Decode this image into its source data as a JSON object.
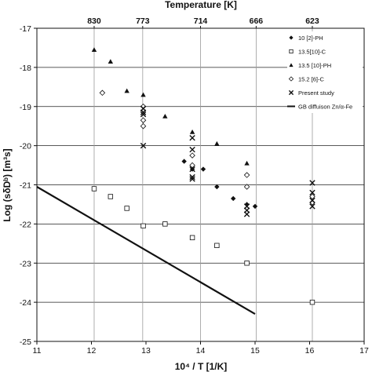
{
  "chart_data": {
    "type": "scatter",
    "title": "",
    "xlabel": "10⁴ / T [1/K]",
    "ylabel": "Log (sδDᵇ)  [m³s]",
    "x2label": "Temperature [K]",
    "xlim": [
      11,
      17
    ],
    "ylim": [
      -25,
      -17
    ],
    "xticks": [
      "11",
      "12",
      "13",
      "14",
      "15",
      "16",
      "17"
    ],
    "yticks": [
      "-17",
      "-18",
      "-19",
      "-20",
      "-21",
      "-22",
      "-23",
      "-24",
      "-25"
    ],
    "top_ticks": [
      {
        "x": 12.05,
        "label": "830"
      },
      {
        "x": 12.94,
        "label": "773"
      },
      {
        "x": 14.0,
        "label": "714"
      },
      {
        "x": 15.02,
        "label": "666"
      },
      {
        "x": 16.05,
        "label": "623"
      }
    ],
    "grid": {
      "horizontal": [
        -18,
        -19,
        -20,
        -21,
        -22,
        -23,
        -24
      ],
      "vertical_at_top_ticks": true
    },
    "legend_position": "top-right",
    "series": [
      {
        "name": "10 [2]-PH",
        "marker": "filled-diamond",
        "points": [
          [
            13.7,
            -20.4
          ],
          [
            13.85,
            -20.6
          ],
          [
            14.05,
            -20.6
          ],
          [
            14.3,
            -21.05
          ],
          [
            14.6,
            -21.35
          ],
          [
            14.85,
            -21.5
          ],
          [
            15.0,
            -21.55
          ]
        ]
      },
      {
        "name": "13.5[10]-C",
        "marker": "open-square",
        "points": [
          [
            12.05,
            -21.1
          ],
          [
            12.35,
            -21.3
          ],
          [
            12.65,
            -21.6
          ],
          [
            12.95,
            -22.05
          ],
          [
            13.35,
            -22.0
          ],
          [
            13.85,
            -22.35
          ],
          [
            14.3,
            -22.55
          ],
          [
            14.85,
            -23.0
          ],
          [
            16.05,
            -24.0
          ]
        ]
      },
      {
        "name": "13.5 [10]-PH",
        "marker": "filled-triangle",
        "points": [
          [
            12.05,
            -17.55
          ],
          [
            12.35,
            -17.85
          ],
          [
            12.65,
            -18.6
          ],
          [
            12.95,
            -18.7
          ],
          [
            13.35,
            -19.25
          ],
          [
            13.85,
            -19.65
          ],
          [
            14.3,
            -19.95
          ],
          [
            14.85,
            -20.45
          ]
        ]
      },
      {
        "name": "15.2 [6]-C",
        "marker": "open-diamond",
        "points": [
          [
            12.2,
            -18.65
          ],
          [
            12.95,
            -19.0
          ],
          [
            12.95,
            -19.35
          ],
          [
            12.95,
            -19.5
          ],
          [
            13.85,
            -20.25
          ],
          [
            13.85,
            -20.5
          ],
          [
            14.85,
            -20.75
          ],
          [
            14.85,
            -21.05
          ],
          [
            16.05,
            -21.3
          ],
          [
            16.05,
            -21.45
          ]
        ]
      },
      {
        "name": "Present study",
        "marker": "x",
        "points": [
          [
            12.95,
            -19.05
          ],
          [
            12.95,
            -19.15
          ],
          [
            12.95,
            -19.2
          ],
          [
            12.95,
            -20.0
          ],
          [
            13.85,
            -19.8
          ],
          [
            13.85,
            -20.1
          ],
          [
            13.85,
            -20.6
          ],
          [
            13.85,
            -20.8
          ],
          [
            13.85,
            -20.85
          ],
          [
            14.85,
            -21.55
          ],
          [
            14.85,
            -21.65
          ],
          [
            14.85,
            -21.75
          ],
          [
            16.05,
            -20.95
          ],
          [
            16.05,
            -21.2
          ],
          [
            16.05,
            -21.4
          ],
          [
            16.05,
            -21.55
          ]
        ]
      },
      {
        "name": "GB diffuison Zn/α-Fe",
        "marker": "line",
        "points": [
          [
            11.0,
            -21.05
          ],
          [
            15.0,
            -24.3
          ]
        ]
      }
    ]
  }
}
